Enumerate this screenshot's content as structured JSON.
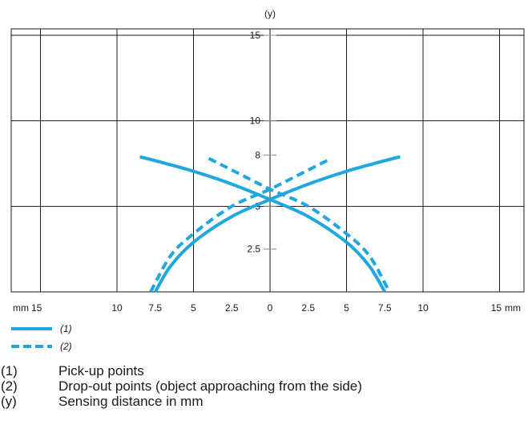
{
  "chart_data": {
    "type": "line",
    "y_axis_label": "(y)",
    "x_unit_left": "mm",
    "x_unit_right": "mm",
    "xlim": [
      -15,
      15
    ],
    "ylim": [
      0,
      15
    ],
    "x_ticks": [
      -15,
      -10,
      -7.5,
      -5,
      -2.5,
      0,
      2.5,
      5,
      7.5,
      10,
      15
    ],
    "x_tick_labels": [
      "15",
      "10",
      "7.5",
      "5",
      "2.5",
      "0",
      "2.5",
      "5",
      "7.5",
      "10",
      "15"
    ],
    "y_ticks": [
      2.5,
      5,
      8,
      10,
      15
    ],
    "y_tick_labels": [
      "2.5",
      "5",
      "8",
      "10",
      "15"
    ],
    "x_gridlines": [
      -15,
      -10,
      -5,
      0,
      5,
      10,
      15
    ],
    "y_gridlines": [
      5,
      10,
      15
    ],
    "grid": true,
    "series": [
      {
        "name": "(1)",
        "style": "solid",
        "curves": [
          [
            [
              -7.5,
              0
            ],
            [
              -6.5,
              1.5
            ],
            [
              -5,
              2.9
            ],
            [
              -2.5,
              4.4
            ],
            [
              0,
              5.4
            ],
            [
              2.5,
              6.3
            ],
            [
              5,
              7.05
            ],
            [
              7,
              7.55
            ],
            [
              8.5,
              7.9
            ]
          ],
          [
            [
              -8.5,
              7.9
            ],
            [
              -7,
              7.55
            ],
            [
              -5,
              7.05
            ],
            [
              -2.5,
              6.3
            ],
            [
              0,
              5.4
            ],
            [
              2.5,
              4.4
            ],
            [
              5,
              2.9
            ],
            [
              6.5,
              1.5
            ],
            [
              7.5,
              0
            ]
          ]
        ]
      },
      {
        "name": "(2)",
        "style": "dashed",
        "curves": [
          [
            [
              -7.8,
              0
            ],
            [
              -6.5,
              2.1
            ],
            [
              -5,
              3.4
            ],
            [
              -2.5,
              5
            ],
            [
              0,
              6
            ],
            [
              2,
              6.9
            ],
            [
              4,
              7.8
            ]
          ],
          [
            [
              -4,
              7.8
            ],
            [
              -2,
              6.9
            ],
            [
              0,
              6
            ],
            [
              2.5,
              5
            ],
            [
              5,
              3.4
            ],
            [
              6.5,
              2.1
            ],
            [
              7.8,
              0
            ]
          ]
        ]
      }
    ],
    "line_color": "#1ea7e0"
  },
  "legend": [
    {
      "key": "(1)",
      "style": "solid"
    },
    {
      "key": "(2)",
      "style": "dashed"
    }
  ],
  "notes": [
    {
      "key": "(1)",
      "text": "Pick-up points"
    },
    {
      "key": "(2)",
      "text": "Drop-out points (object approaching from the side)"
    },
    {
      "key": "(y)",
      "text": "Sensing distance in mm"
    }
  ]
}
